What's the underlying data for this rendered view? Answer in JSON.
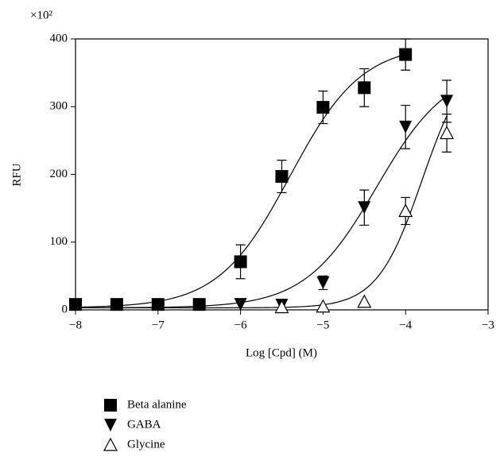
{
  "chart_data": {
    "type": "scatter",
    "x_label": "Log [Cpd] (M)",
    "y_label": "RFU",
    "y_multiplier": "×10²",
    "xlim": [
      -8,
      -3
    ],
    "xticks": [
      {
        "value": -8,
        "label": "−8"
      },
      {
        "value": -7,
        "label": "−7"
      },
      {
        "value": -6,
        "label": "−6"
      },
      {
        "value": -5,
        "label": "−5"
      },
      {
        "value": -4,
        "label": "−4"
      },
      {
        "value": -3,
        "label": "−3"
      }
    ],
    "ylim": [
      0,
      400
    ],
    "yticks": [
      0,
      100,
      200,
      300,
      400
    ],
    "series": [
      {
        "name": "Beta alanine",
        "color": "#000000",
        "marker": "square",
        "x": [
          -8,
          -7.5,
          -7,
          -6.5,
          -6,
          -5.5,
          -5,
          -4.5,
          -4
        ],
        "values": [
          8,
          8,
          8,
          8,
          71,
          197,
          299,
          328,
          377
        ],
        "errors": [
          null,
          null,
          null,
          null,
          25,
          24,
          24,
          28,
          23
        ],
        "fit": {
          "bottom": 3,
          "top": 392,
          "log_ec50": -5.4,
          "hill": 1
        }
      },
      {
        "name": "GABA",
        "color": "#000000",
        "marker": "triangle-down",
        "x": [
          -6,
          -5.5,
          -5,
          -4.5,
          -4,
          -3.5
        ],
        "values": [
          8,
          7,
          40,
          151,
          270,
          308
        ],
        "errors": [
          null,
          null,
          10,
          26,
          32,
          31
        ],
        "fit": {
          "bottom": 3,
          "top": 360,
          "log_ec50": -4.35,
          "hill": 1
        }
      },
      {
        "name": "Glycine",
        "color": "#000000",
        "marker": "triangle-up-open",
        "x": [
          -5.5,
          -5,
          -4.5,
          -4,
          -3.5
        ],
        "values": [
          4,
          5,
          12,
          146,
          261
        ],
        "errors": [
          null,
          null,
          null,
          20,
          28
        ],
        "fit": {
          "bottom": 3,
          "top": 380,
          "log_ec50": -3.8,
          "hill": 1.6
        }
      }
    ]
  }
}
